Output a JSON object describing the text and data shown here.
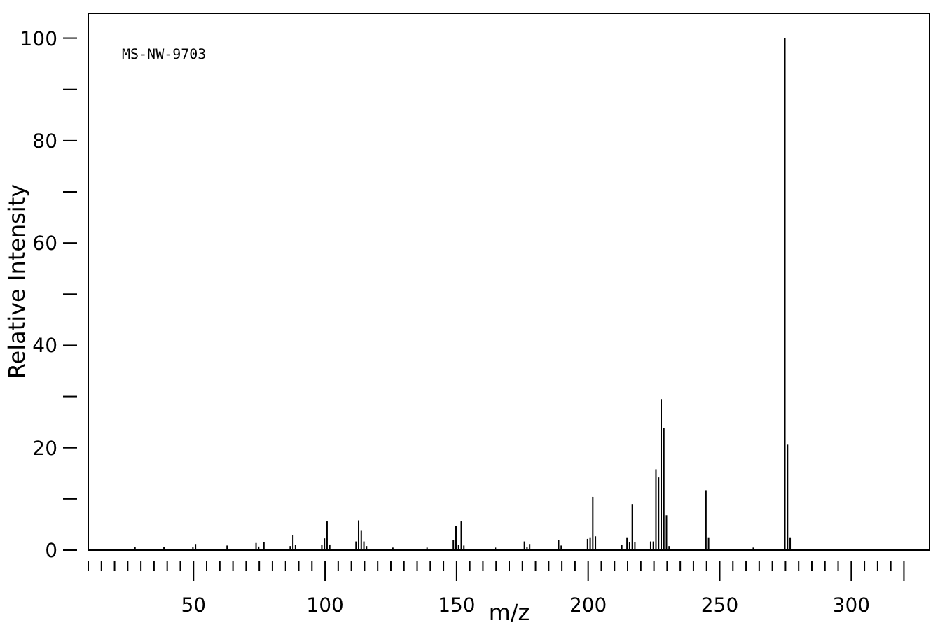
{
  "chart_data": {
    "type": "bar",
    "xlabel": "m/z",
    "ylabel": "Relative Intensity",
    "annotations": [
      "MS-NW-9703"
    ],
    "color": "#000000",
    "x": [
      28,
      39,
      50,
      51,
      63,
      74,
      75,
      77,
      87,
      88,
      89,
      99,
      100,
      101,
      102,
      112,
      113,
      114,
      115,
      116,
      126,
      139,
      149,
      150,
      151,
      152,
      153,
      165,
      176,
      177,
      178,
      189,
      190,
      200,
      201,
      202,
      203,
      213,
      215,
      216,
      217,
      218,
      224,
      225,
      226,
      227,
      228,
      229,
      230,
      231,
      245,
      246,
      263,
      275,
      276,
      277
    ],
    "values": [
      0.6,
      0.6,
      0.6,
      1.2,
      0.9,
      1.4,
      0.7,
      1.6,
      0.8,
      2.9,
      1.0,
      1.0,
      2.3,
      5.6,
      1.1,
      1.7,
      5.8,
      3.9,
      1.7,
      0.8,
      0.5,
      0.5,
      2.0,
      4.7,
      1.0,
      5.6,
      0.9,
      0.5,
      1.7,
      0.6,
      1.2,
      2.0,
      0.9,
      2.2,
      2.5,
      10.4,
      2.7,
      1.0,
      2.5,
      1.5,
      9.0,
      1.6,
      1.7,
      1.7,
      15.8,
      14.2,
      29.5,
      23.8,
      6.8,
      0.8,
      11.7,
      2.5,
      0.5,
      100,
      20.6,
      2.5
    ],
    "xlim": [
      10,
      330
    ],
    "xticks": [
      50,
      100,
      150,
      200,
      250,
      300,
      {
        "value": 320,
        "label": null
      }
    ],
    "ylim": [
      0,
      105
    ],
    "yticks": [
      0,
      {
        "value": 10,
        "label": null
      },
      20,
      {
        "value": 30,
        "label": null
      },
      40,
      {
        "value": 50,
        "label": null
      },
      60,
      {
        "value": 70,
        "label": null
      },
      80,
      {
        "value": 90,
        "label": null
      },
      100
    ]
  }
}
